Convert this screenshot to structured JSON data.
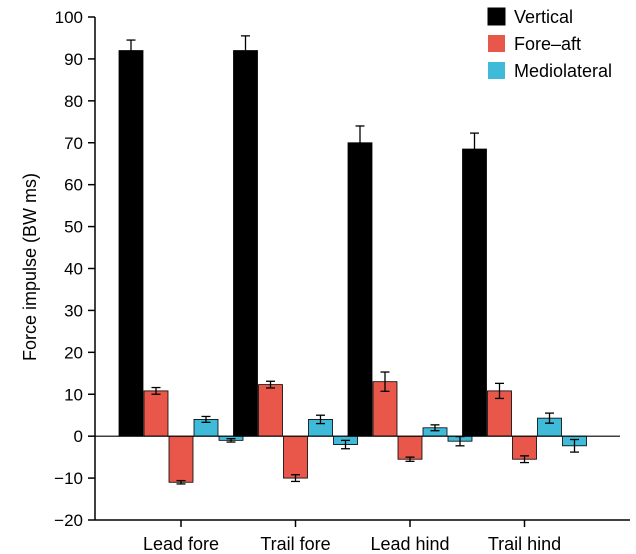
{
  "chart_data": {
    "type": "bar",
    "title": "",
    "xlabel": "",
    "ylabel": "Force impulse (BW ms)",
    "ylim": [
      -20,
      100
    ],
    "yticks": [
      -20,
      -10,
      0,
      10,
      20,
      30,
      40,
      50,
      60,
      70,
      80,
      90,
      100
    ],
    "yticklabels": [
      "−20",
      "−10",
      "0",
      "10",
      "20",
      "30",
      "40",
      "50",
      "60",
      "70",
      "80",
      "90",
      "100"
    ],
    "grid": false,
    "legend_position": "top-right",
    "categories": [
      "Lead fore",
      "Trail fore",
      "Lead hind",
      "Trail hind"
    ],
    "series": [
      {
        "name": "Vertical",
        "color": "#000000",
        "bars_per_category": 1,
        "values": [
          [
            92
          ],
          [
            92
          ],
          [
            70
          ],
          [
            68.5
          ]
        ],
        "errors": [
          [
            2.5
          ],
          [
            3.5
          ],
          [
            4
          ],
          [
            3.8
          ]
        ]
      },
      {
        "name": "Fore–aft",
        "color": "#e8574a",
        "bars_per_category": 2,
        "values": [
          [
            10.8,
            -11
          ],
          [
            12.3,
            -10
          ],
          [
            13,
            -5.5
          ],
          [
            10.8,
            -5.5
          ]
        ],
        "errors": [
          [
            0.8,
            0.4
          ],
          [
            0.8,
            0.8
          ],
          [
            2.3,
            0.5
          ],
          [
            1.8,
            0.8
          ]
        ]
      },
      {
        "name": "Mediolateral",
        "color": "#3fbbd9",
        "bars_per_category": 2,
        "values": [
          [
            4,
            -1
          ],
          [
            4,
            -2
          ],
          [
            2,
            -1.2
          ],
          [
            4.3,
            -2.3
          ]
        ],
        "errors": [
          [
            0.7,
            0.4
          ],
          [
            1,
            1
          ],
          [
            0.7,
            1.1
          ],
          [
            1.2,
            1.5
          ]
        ]
      }
    ]
  }
}
